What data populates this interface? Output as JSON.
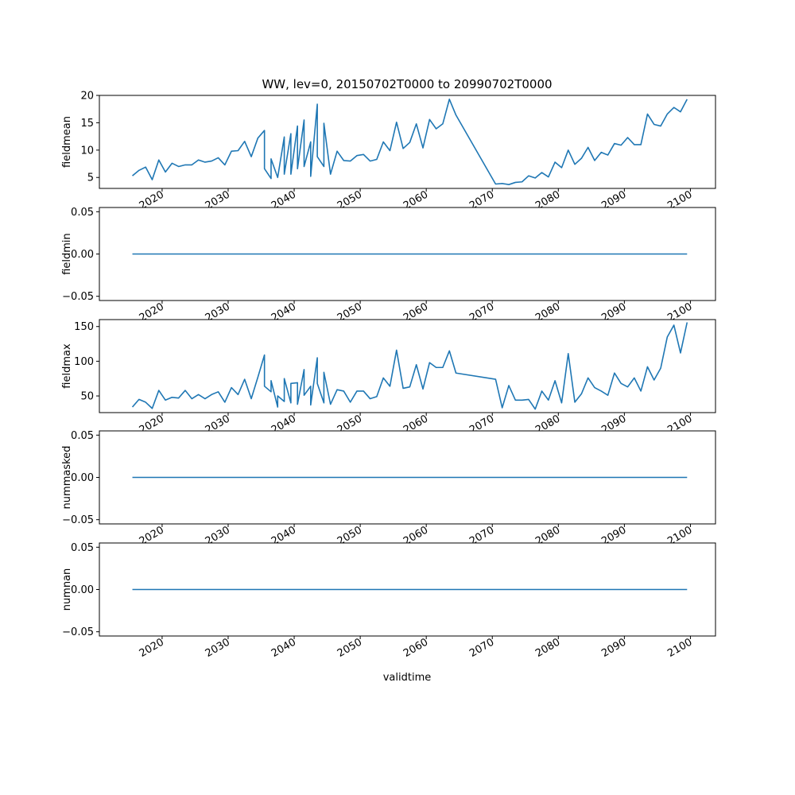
{
  "title": "WW, lev=0, 20150702T0000 to 20990702T0000",
  "xlabel": "validtime",
  "chart_data": {
    "type": "line",
    "title": "WW, lev=0, 20150702T0000 to 20990702T0000",
    "xlabel": "validtime",
    "x_tick_labels": [
      "2020",
      "2030",
      "2040",
      "2050",
      "2060",
      "2070",
      "2080",
      "2090",
      "2100"
    ],
    "xlim": [
      2010.5,
      2103.8
    ],
    "grid": false,
    "legend": "none",
    "panels": [
      {
        "ylabel": "fieldmean",
        "ylim": [
          3.0,
          20.0
        ],
        "y_ticks": [
          5,
          10,
          15,
          20
        ],
        "y_tick_labels": [
          "5",
          "10",
          "15",
          "20"
        ],
        "x": [
          2015.5,
          2016.5,
          2017.5,
          2018.5,
          2019.5,
          2020.5,
          2021.5,
          2022.5,
          2023.5,
          2024.5,
          2025.5,
          2026.5,
          2027.5,
          2028.5,
          2029.5,
          2030.5,
          2031.5,
          2032.5,
          2033.5,
          2034.5,
          2035.5,
          2035.5,
          2036.5,
          2036.5,
          2037.5,
          2038.5,
          2038.5,
          2039.5,
          2039.5,
          2040.5,
          2040.5,
          2041.5,
          2041.5,
          2042.5,
          2042.5,
          2043.5,
          2043.5,
          2044.5,
          2044.5,
          2045.5,
          2046.5,
          2047.5,
          2048.5,
          2049.5,
          2050.5,
          2051.5,
          2052.5,
          2053.5,
          2054.5,
          2055.5,
          2056.5,
          2057.5,
          2058.5,
          2059.5,
          2060.5,
          2061.5,
          2062.5,
          2063.5,
          2064.5,
          2070.5,
          2071.5,
          2072.5,
          2073.5,
          2074.5,
          2075.5,
          2076.5,
          2077.5,
          2078.5,
          2079.5,
          2080.5,
          2081.5,
          2082.5,
          2083.5,
          2084.5,
          2085.5,
          2086.5,
          2087.5,
          2088.5,
          2089.5,
          2090.5,
          2091.5,
          2092.5,
          2093.5,
          2094.5,
          2095.5,
          2096.5,
          2097.5,
          2098.5,
          2099.5
        ],
        "y": [
          5.3,
          6.3,
          6.9,
          4.6,
          8.2,
          6.0,
          7.6,
          7.0,
          7.3,
          7.3,
          8.2,
          7.8,
          8.0,
          8.6,
          7.3,
          9.8,
          9.9,
          11.6,
          8.8,
          12.2,
          13.6,
          6.6,
          4.8,
          8.4,
          5.0,
          12.4,
          5.6,
          13.0,
          5.6,
          14.4,
          6.6,
          15.5,
          7.0,
          11.5,
          5.2,
          18.4,
          8.8,
          7.0,
          14.9,
          5.6,
          9.8,
          8.1,
          8.0,
          9.0,
          9.2,
          8.0,
          8.3,
          11.5,
          9.9,
          15.1,
          10.3,
          11.4,
          14.8,
          10.4,
          15.6,
          13.9,
          14.8,
          19.3,
          16.4,
          3.8,
          3.9,
          3.7,
          4.1,
          4.2,
          5.3,
          4.9,
          5.9,
          5.1,
          7.8,
          6.8,
          10.0,
          7.4,
          8.5,
          10.5,
          8.1,
          9.6,
          9.1,
          11.2,
          10.9,
          12.3,
          11.0,
          11.0,
          16.6,
          14.7,
          14.4,
          16.6,
          17.8,
          17.0,
          19.3
        ]
      },
      {
        "ylabel": "fieldmin",
        "ylim": [
          -0.055,
          0.055
        ],
        "y_ticks": [
          0.05,
          0.0,
          -0.05
        ],
        "y_tick_labels": [
          "0.05",
          "0.00",
          "−0.05"
        ],
        "x": [
          2015.5,
          2099.5
        ],
        "y": [
          0.0,
          0.0
        ]
      },
      {
        "ylabel": "fieldmax",
        "ylim": [
          26,
          160
        ],
        "y_ticks": [
          50,
          100,
          150
        ],
        "y_tick_labels": [
          "50",
          "100",
          "150"
        ],
        "x": [
          2015.5,
          2016.5,
          2017.5,
          2018.5,
          2019.5,
          2020.5,
          2021.5,
          2022.5,
          2023.5,
          2024.5,
          2025.5,
          2026.5,
          2027.5,
          2028.5,
          2029.5,
          2030.5,
          2031.5,
          2032.5,
          2033.5,
          2034.5,
          2035.5,
          2035.5,
          2036.5,
          2036.5,
          2037.5,
          2037.5,
          2038.5,
          2038.5,
          2039.5,
          2039.5,
          2040.5,
          2040.5,
          2041.5,
          2041.5,
          2042.5,
          2042.5,
          2043.5,
          2043.5,
          2044.5,
          2044.5,
          2045.5,
          2046.5,
          2047.5,
          2048.5,
          2049.5,
          2050.5,
          2051.5,
          2052.5,
          2053.5,
          2054.5,
          2055.5,
          2056.5,
          2057.5,
          2058.5,
          2059.5,
          2060.5,
          2061.5,
          2062.5,
          2063.5,
          2064.5,
          2070.5,
          2071.5,
          2072.5,
          2073.5,
          2074.5,
          2075.5,
          2076.5,
          2077.5,
          2078.5,
          2079.5,
          2080.5,
          2081.5,
          2082.5,
          2083.5,
          2084.5,
          2085.5,
          2086.5,
          2087.5,
          2088.5,
          2089.5,
          2090.5,
          2091.5,
          2092.5,
          2093.5,
          2094.5,
          2095.5,
          2096.5,
          2097.5,
          2098.5,
          2099.5
        ],
        "y": [
          34,
          45,
          41,
          32,
          58,
          44,
          48,
          47,
          58,
          46,
          52,
          46,
          52,
          56,
          41,
          62,
          52,
          74,
          46,
          77,
          109,
          64,
          56,
          72,
          34,
          50,
          42,
          75,
          40,
          68,
          69,
          38,
          88,
          51,
          64,
          37,
          105,
          68,
          40,
          84,
          38,
          59,
          57,
          41,
          57,
          57,
          46,
          49,
          76,
          64,
          116,
          61,
          63,
          95,
          60,
          98,
          91,
          91,
          115,
          83,
          74,
          33,
          65,
          44,
          44,
          45,
          31,
          57,
          44,
          72,
          40,
          111,
          41,
          53,
          76,
          62,
          57,
          51,
          83,
          68,
          63,
          76,
          57,
          92,
          73,
          90,
          135,
          152,
          112,
          156
        ]
      },
      {
        "ylabel": "nummasked",
        "ylim": [
          -0.055,
          0.055
        ],
        "y_ticks": [
          0.05,
          0.0,
          -0.05
        ],
        "y_tick_labels": [
          "0.05",
          "0.00",
          "−0.05"
        ],
        "x": [
          2015.5,
          2099.5
        ],
        "y": [
          0.0,
          0.0
        ]
      },
      {
        "ylabel": "numnan",
        "ylim": [
          -0.055,
          0.055
        ],
        "y_ticks": [
          0.05,
          0.0,
          -0.05
        ],
        "y_tick_labels": [
          "0.05",
          "0.00",
          "−0.05"
        ],
        "x": [
          2015.5,
          2099.5
        ],
        "y": [
          0.0,
          0.0
        ]
      }
    ]
  },
  "colors": {
    "series": "#1f77b4",
    "axes": "#000000",
    "background": "#ffffff"
  }
}
